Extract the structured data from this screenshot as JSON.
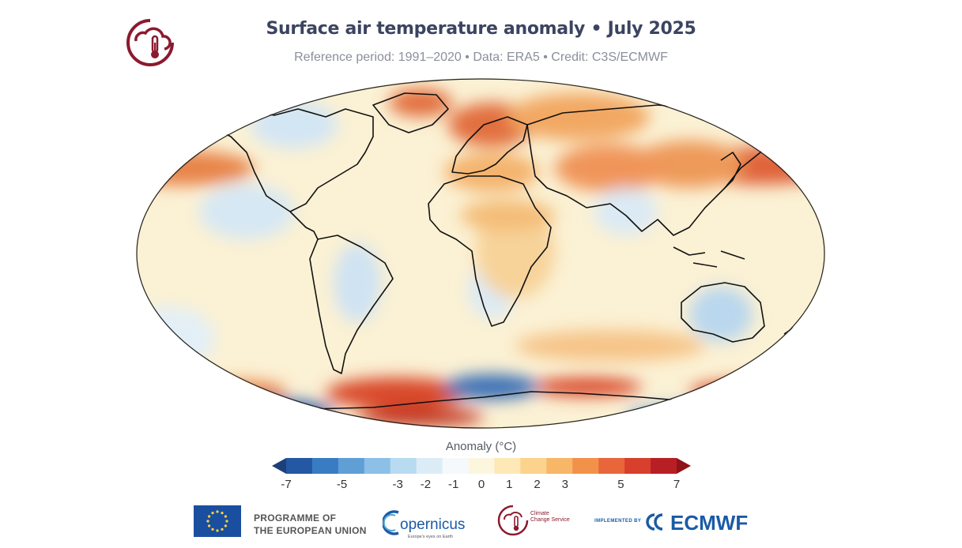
{
  "title": "Surface air temperature anomaly • July 2025",
  "subtitle": "Reference period: 1991–2020 • Data: ERA5 • Credit: C3S/ECMWF",
  "legend": {
    "title": "Anomaly (°C)",
    "ticks": [
      "-7",
      "-5",
      "-3",
      "-2",
      "-1",
      "0",
      "1",
      "2",
      "3",
      "5",
      "7"
    ],
    "colors": [
      "#1e3f7a",
      "#2458a3",
      "#3a7cc4",
      "#5f9fd6",
      "#8dc0e6",
      "#b8dbf1",
      "#dcecf7",
      "#f5f9fc",
      "#fdf6df",
      "#fde8b6",
      "#fbd38c",
      "#f7b668",
      "#f2924a",
      "#e8663a",
      "#d83f2c",
      "#b81f24",
      "#8f1319"
    ]
  },
  "map": {
    "colors": {
      "ocean_neutral": "#fbf1d4",
      "warm": "#f3b06a",
      "hot": "#d94a2b",
      "cool": "#cfe4f3",
      "cold": "#3a6fb5",
      "coastline": "#111111"
    }
  },
  "footer": {
    "eu_text_line1": "PROGRAMME OF",
    "eu_text_line2": "THE EUROPEAN UNION",
    "copernicus_label": "opernicus",
    "copernicus_tagline": "Europe's eyes on Earth",
    "c3s_line1": "Climate",
    "c3s_line2": "Change Service",
    "implemented_by": "IMPLEMENTED BY",
    "ecmwf_label": "ECMWF"
  }
}
